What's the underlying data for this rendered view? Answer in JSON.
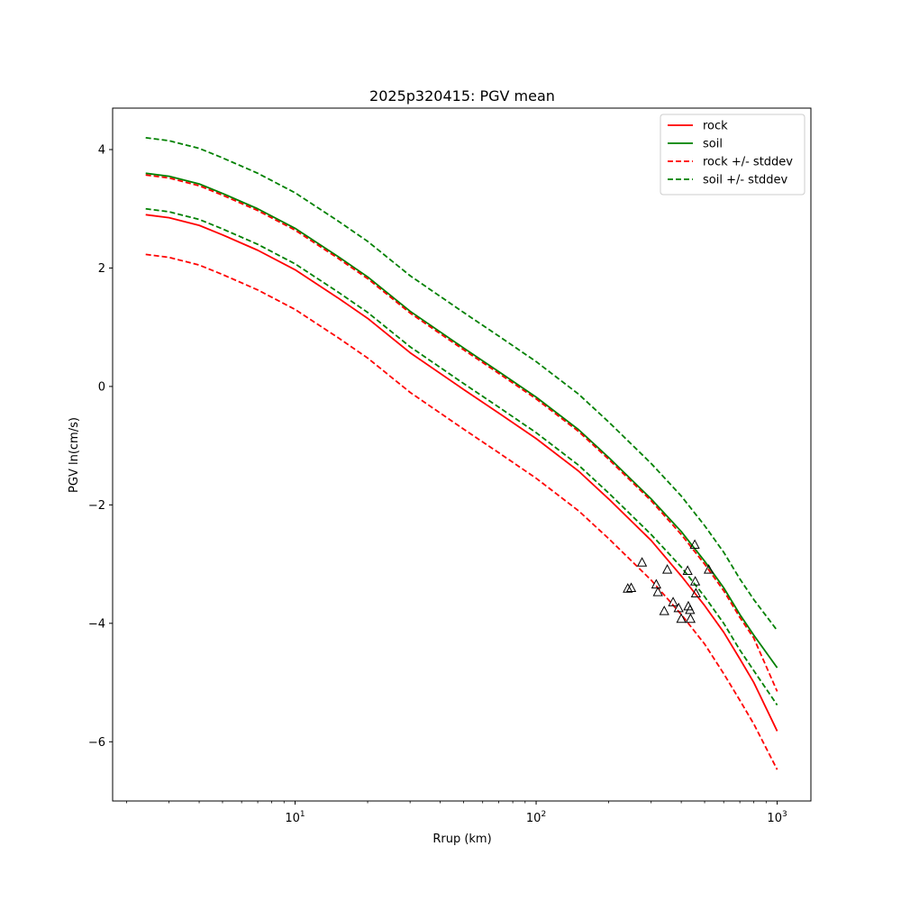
{
  "chart_data": {
    "type": "line",
    "title": "2025p320415: PGV mean",
    "xlabel": "Rrup (km)",
    "ylabel": "PGV ln(cm/s)",
    "xscale": "log",
    "xlim": [
      1.75,
      1380
    ],
    "ylim": [
      -7.0,
      4.7
    ],
    "grid": false,
    "legend_position": "top-right",
    "x_ticks": [
      {
        "value": 10,
        "label": "10^1"
      },
      {
        "value": 100,
        "label": "10^2"
      },
      {
        "value": 1000,
        "label": "10^3"
      }
    ],
    "y_ticks": [
      {
        "value": 4,
        "label": "4"
      },
      {
        "value": 2,
        "label": "2"
      },
      {
        "value": 0,
        "label": "0"
      },
      {
        "value": -2,
        "label": "−2"
      },
      {
        "value": -4,
        "label": "−4"
      },
      {
        "value": -6,
        "label": "−6"
      }
    ],
    "x": [
      2.4,
      3,
      4,
      5,
      7,
      10,
      15,
      20,
      30,
      50,
      70,
      100,
      150,
      200,
      300,
      400,
      500,
      600,
      700,
      800,
      1000
    ],
    "series": [
      {
        "name": "rock",
        "color": "#ff0000",
        "dash": "solid",
        "values": [
          2.9,
          2.85,
          2.72,
          2.56,
          2.3,
          1.97,
          1.5,
          1.15,
          0.57,
          -0.05,
          -0.45,
          -0.88,
          -1.43,
          -1.9,
          -2.6,
          -3.2,
          -3.7,
          -4.15,
          -4.6,
          -5.0,
          -5.82
        ]
      },
      {
        "name": "soil",
        "color": "#008000",
        "dash": "solid",
        "values": [
          3.6,
          3.55,
          3.42,
          3.26,
          3.0,
          2.67,
          2.2,
          1.85,
          1.27,
          0.65,
          0.25,
          -0.18,
          -0.73,
          -1.2,
          -1.9,
          -2.45,
          -2.95,
          -3.4,
          -3.85,
          -4.2,
          -4.75
        ]
      },
      {
        "name": "rock +/- stddev",
        "color": "#ff0000",
        "dash": "dashed",
        "values": [
          3.57,
          3.52,
          3.39,
          3.23,
          2.97,
          2.64,
          2.17,
          1.82,
          1.24,
          0.62,
          0.22,
          -0.21,
          -0.76,
          -1.23,
          -1.93,
          -2.5,
          -3.0,
          -3.45,
          -3.9,
          -4.25,
          -5.15
        ]
      },
      {
        "name": "",
        "color": "#ff0000",
        "dash": "dashed",
        "values": [
          2.23,
          2.18,
          2.05,
          1.89,
          1.63,
          1.3,
          0.83,
          0.48,
          -0.1,
          -0.72,
          -1.12,
          -1.55,
          -2.1,
          -2.57,
          -3.27,
          -3.85,
          -4.35,
          -4.85,
          -5.3,
          -5.7,
          -6.47
        ]
      },
      {
        "name": "soil +/- stddev",
        "color": "#008000",
        "dash": "dashed",
        "values": [
          4.2,
          4.15,
          4.02,
          3.86,
          3.6,
          3.27,
          2.8,
          2.45,
          1.87,
          1.25,
          0.85,
          0.42,
          -0.13,
          -0.6,
          -1.3,
          -1.85,
          -2.35,
          -2.8,
          -3.25,
          -3.6,
          -4.12
        ]
      },
      {
        "name": "",
        "color": "#008000",
        "dash": "dashed",
        "values": [
          3.0,
          2.95,
          2.82,
          2.66,
          2.4,
          2.07,
          1.6,
          1.25,
          0.67,
          0.05,
          -0.35,
          -0.78,
          -1.33,
          -1.8,
          -2.5,
          -3.05,
          -3.55,
          -4.0,
          -4.45,
          -4.8,
          -5.38
        ]
      }
    ],
    "observations": {
      "marker": "triangle",
      "points": [
        [
          240,
          -3.42
        ],
        [
          248,
          -3.41
        ],
        [
          275,
          -2.98
        ],
        [
          315,
          -3.35
        ],
        [
          320,
          -3.48
        ],
        [
          340,
          -3.8
        ],
        [
          350,
          -3.1
        ],
        [
          370,
          -3.65
        ],
        [
          390,
          -3.75
        ],
        [
          400,
          -3.93
        ],
        [
          425,
          -3.12
        ],
        [
          428,
          -3.72
        ],
        [
          435,
          -3.78
        ],
        [
          437,
          -3.93
        ],
        [
          455,
          -2.68
        ],
        [
          457,
          -3.3
        ],
        [
          460,
          -3.5
        ],
        [
          520,
          -3.1
        ]
      ]
    }
  }
}
